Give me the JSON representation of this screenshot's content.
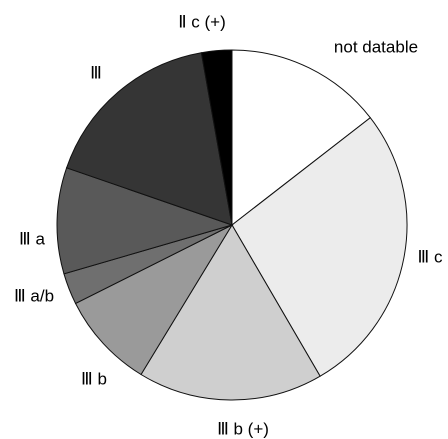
{
  "chart_data": {
    "type": "pie",
    "start": "top",
    "direction": "clockwise",
    "slices": [
      {
        "label": "not datable",
        "value": 14.5,
        "color": "#ffffff"
      },
      {
        "label": "Ⅲ c",
        "value": 27.1,
        "color": "#ececec"
      },
      {
        "label": "Ⅲ b (+)",
        "value": 17.1,
        "color": "#cfcfcf"
      },
      {
        "label": "Ⅲ b",
        "value": 8.9,
        "color": "#9a9a9a"
      },
      {
        "label": "Ⅲ a/b",
        "value": 2.9,
        "color": "#6f6f6f"
      },
      {
        "label": "Ⅲ a",
        "value": 9.8,
        "color": "#595959"
      },
      {
        "label": "Ⅲ",
        "value": 16.9,
        "color": "#353535"
      },
      {
        "label": "Ⅱ c (+)",
        "value": 2.8,
        "color": "#000000"
      }
    ]
  }
}
